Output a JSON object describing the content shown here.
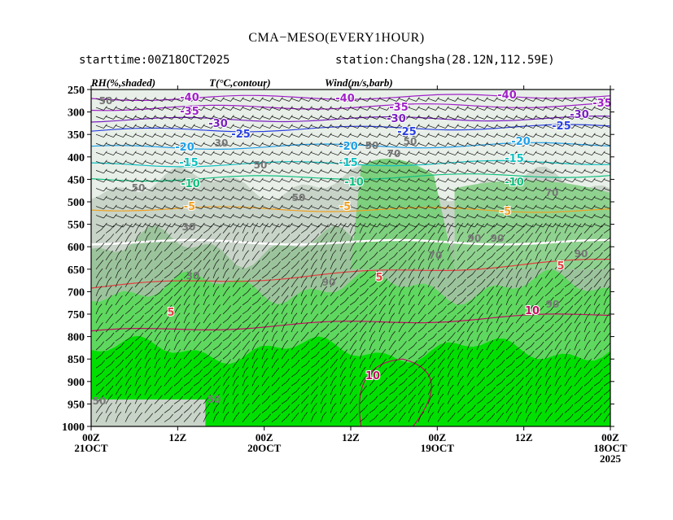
{
  "header": {
    "title": "CMA−MESO(EVERY1HOUR)",
    "starttime": "starttime:00Z18OCT2025",
    "station": "station:Changsha(28.12N,112.59E)"
  },
  "legend": {
    "rh": "RH(%,shaded)",
    "temp": "T(°C,contour)",
    "wind": "Wind(m/s,barb)"
  },
  "chart_data": {
    "type": "heatmap",
    "subtype": "time-pressure cross section with contours and wind barbs",
    "title": "CMA−MESO(EVERY1HOUR)",
    "y_axis": {
      "quantity": "pressure (hPa)",
      "range": [
        1000,
        250
      ],
      "ticks": [
        250,
        300,
        350,
        400,
        450,
        500,
        550,
        600,
        650,
        700,
        750,
        800,
        850,
        900,
        950,
        1000
      ]
    },
    "x_axis": {
      "direction": "time decreasing left to right",
      "range": [
        "00Z 21OCT",
        "00Z 18OCT 2025"
      ],
      "ticks": [
        {
          "l1": "00Z",
          "l2": "21OCT",
          "l3": ""
        },
        {
          "l1": "12Z",
          "l2": "",
          "l3": ""
        },
        {
          "l1": "00Z",
          "l2": "20OCT",
          "l3": ""
        },
        {
          "l1": "12Z",
          "l2": "",
          "l3": ""
        },
        {
          "l1": "00Z",
          "l2": "19OCT",
          "l3": ""
        },
        {
          "l1": "12Z",
          "l2": "",
          "l3": ""
        },
        {
          "l1": "00Z",
          "l2": "18OCT",
          "l3": "2025"
        }
      ]
    },
    "rh_shading": {
      "levels": [
        30,
        50,
        70,
        90
      ],
      "colors": [
        "#e8efe8",
        "#c8d4c8",
        "#9cc49c",
        "#5fd85f",
        "#00e000"
      ],
      "note": "dry (<50%) grey above ~500 hPa, moist (>90%) green below ~650 hPa"
    },
    "temperature_contours": [
      {
        "value": -40,
        "color": "#a020c8"
      },
      {
        "value": -35,
        "color": "#a020c8"
      },
      {
        "value": -30,
        "color": "#7a1fc0"
      },
      {
        "value": -25,
        "color": "#2a40e0"
      },
      {
        "value": -20,
        "color": "#1fa0e8"
      },
      {
        "value": -15,
        "color": "#10c0c0"
      },
      {
        "value": -10,
        "color": "#10c080"
      },
      {
        "value": -5,
        "color": "#f0a020"
      },
      {
        "value": 0,
        "color": "#ffffff"
      },
      {
        "value": 5,
        "color": "#e04040"
      },
      {
        "value": 10,
        "color": "#c01060"
      }
    ],
    "rh_labels": [
      {
        "text": "50"
      },
      {
        "text": "30"
      },
      {
        "text": "50"
      },
      {
        "text": "70"
      },
      {
        "text": "50"
      },
      {
        "text": "30"
      },
      {
        "text": "50"
      },
      {
        "text": "50"
      },
      {
        "text": "50"
      },
      {
        "text": "70"
      },
      {
        "text": "30"
      },
      {
        "text": "90"
      },
      {
        "text": "70"
      },
      {
        "text": "90"
      },
      {
        "text": "90"
      },
      {
        "text": "90"
      },
      {
        "text": "90"
      },
      {
        "text": "50"
      },
      {
        "text": "50"
      }
    ],
    "temp_labels": [
      {
        "text": "-40"
      },
      {
        "text": "-40"
      },
      {
        "text": "-40"
      },
      {
        "text": "-35"
      },
      {
        "text": "-35"
      },
      {
        "text": "-35"
      },
      {
        "text": "-30"
      },
      {
        "text": "-30"
      },
      {
        "text": "-30"
      },
      {
        "text": "-25"
      },
      {
        "text": "-25"
      },
      {
        "text": "-25"
      },
      {
        "text": "-20"
      },
      {
        "text": "-20"
      },
      {
        "text": "-20"
      },
      {
        "text": "-15"
      },
      {
        "text": "-15"
      },
      {
        "text": "-15"
      },
      {
        "text": "-10"
      },
      {
        "text": "-10"
      },
      {
        "text": "-10"
      },
      {
        "text": "-5"
      },
      {
        "text": "-5"
      },
      {
        "text": "-5"
      },
      {
        "text": "5"
      },
      {
        "text": "5"
      },
      {
        "text": "5"
      },
      {
        "text": "10"
      },
      {
        "text": "10"
      }
    ]
  }
}
